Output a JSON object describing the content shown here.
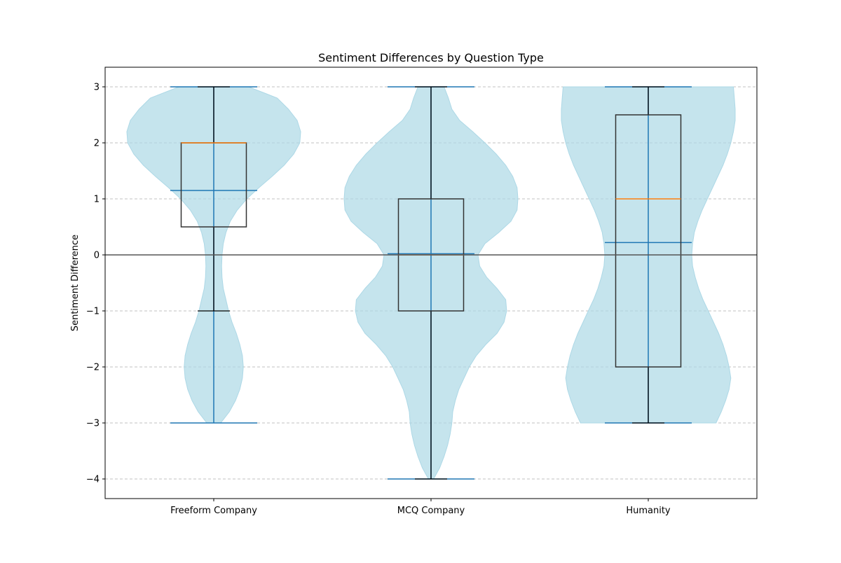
{
  "chart_data": {
    "type": "violin",
    "title": "Sentiment Differences by Question Type",
    "xlabel": "",
    "ylabel": "Sentiment Difference",
    "categories": [
      "Freeform Company",
      "MCQ Company",
      "Humanity"
    ],
    "ylim": [
      -4.35,
      3.35
    ],
    "yticks": [
      -4,
      -3,
      -2,
      -1,
      0,
      1,
      2,
      3
    ],
    "grid": "y-dashed",
    "reference_line": 0,
    "violins": [
      {
        "category": "Freeform Company",
        "min": -3,
        "max": 3,
        "mean": 1.15,
        "box": {
          "q1": 0.5,
          "median": 2,
          "q3": 2,
          "whisker_low": -1,
          "whisker_high": 3
        },
        "density_profile": [
          [
            3.0,
            0.4
          ],
          [
            2.8,
            0.73
          ],
          [
            2.6,
            0.86
          ],
          [
            2.4,
            0.96
          ],
          [
            2.2,
            1.0
          ],
          [
            2.0,
            0.99
          ],
          [
            1.8,
            0.92
          ],
          [
            1.6,
            0.81
          ],
          [
            1.4,
            0.67
          ],
          [
            1.2,
            0.52
          ],
          [
            1.0,
            0.38
          ],
          [
            0.8,
            0.27
          ],
          [
            0.6,
            0.19
          ],
          [
            0.4,
            0.14
          ],
          [
            0.2,
            0.11
          ],
          [
            0.0,
            0.095
          ],
          [
            -0.2,
            0.09
          ],
          [
            -0.4,
            0.095
          ],
          [
            -0.6,
            0.11
          ],
          [
            -0.8,
            0.14
          ],
          [
            -1.0,
            0.17
          ],
          [
            -1.2,
            0.21
          ],
          [
            -1.4,
            0.26
          ],
          [
            -1.6,
            0.3
          ],
          [
            -1.8,
            0.33
          ],
          [
            -2.0,
            0.34
          ],
          [
            -2.2,
            0.33
          ],
          [
            -2.4,
            0.3
          ],
          [
            -2.6,
            0.25
          ],
          [
            -2.8,
            0.18
          ],
          [
            -3.0,
            0.08
          ]
        ]
      },
      {
        "category": "MCQ Company",
        "min": -4,
        "max": 3,
        "mean": 0.02,
        "box": {
          "q1": -1,
          "median": 0,
          "q3": 1,
          "whisker_low": -4,
          "whisker_high": 3
        },
        "density_profile": [
          [
            3.0,
            0.15
          ],
          [
            2.8,
            0.2
          ],
          [
            2.6,
            0.24
          ],
          [
            2.4,
            0.33
          ],
          [
            2.2,
            0.48
          ],
          [
            2.0,
            0.62
          ],
          [
            1.8,
            0.75
          ],
          [
            1.6,
            0.86
          ],
          [
            1.4,
            0.94
          ],
          [
            1.2,
            0.99
          ],
          [
            1.0,
            1.0
          ],
          [
            0.8,
            0.99
          ],
          [
            0.6,
            0.92
          ],
          [
            0.4,
            0.78
          ],
          [
            0.2,
            0.62
          ],
          [
            0.0,
            0.54
          ],
          [
            -0.2,
            0.56
          ],
          [
            -0.4,
            0.64
          ],
          [
            -0.6,
            0.76
          ],
          [
            -0.8,
            0.86
          ],
          [
            -1.0,
            0.87
          ],
          [
            -1.2,
            0.84
          ],
          [
            -1.4,
            0.76
          ],
          [
            -1.6,
            0.63
          ],
          [
            -1.8,
            0.52
          ],
          [
            -2.0,
            0.44
          ],
          [
            -2.2,
            0.38
          ],
          [
            -2.4,
            0.32
          ],
          [
            -2.6,
            0.28
          ],
          [
            -2.8,
            0.25
          ],
          [
            -3.0,
            0.24
          ],
          [
            -3.2,
            0.22
          ],
          [
            -3.4,
            0.19
          ],
          [
            -3.6,
            0.15
          ],
          [
            -3.8,
            0.1
          ],
          [
            -4.0,
            0.03
          ]
        ]
      },
      {
        "category": "Humanity",
        "min": -3,
        "max": 3,
        "mean": 0.22,
        "box": {
          "q1": -2,
          "median": 1,
          "q3": 2.5,
          "whisker_low": -3,
          "whisker_high": 3
        },
        "density_profile": [
          [
            3.0,
            0.98
          ],
          [
            2.8,
            0.99
          ],
          [
            2.6,
            1.0
          ],
          [
            2.4,
            1.0
          ],
          [
            2.2,
            0.98
          ],
          [
            2.0,
            0.95
          ],
          [
            1.8,
            0.91
          ],
          [
            1.6,
            0.86
          ],
          [
            1.4,
            0.8
          ],
          [
            1.2,
            0.74
          ],
          [
            1.0,
            0.68
          ],
          [
            0.8,
            0.62
          ],
          [
            0.6,
            0.57
          ],
          [
            0.4,
            0.53
          ],
          [
            0.2,
            0.51
          ],
          [
            0.0,
            0.5
          ],
          [
            -0.2,
            0.51
          ],
          [
            -0.4,
            0.54
          ],
          [
            -0.6,
            0.58
          ],
          [
            -0.8,
            0.63
          ],
          [
            -1.0,
            0.69
          ],
          [
            -1.2,
            0.75
          ],
          [
            -1.4,
            0.81
          ],
          [
            -1.6,
            0.86
          ],
          [
            -1.8,
            0.9
          ],
          [
            -2.0,
            0.93
          ],
          [
            -2.2,
            0.95
          ],
          [
            -2.4,
            0.93
          ],
          [
            -2.6,
            0.89
          ],
          [
            -2.8,
            0.84
          ],
          [
            -3.0,
            0.78
          ]
        ]
      }
    ],
    "colors": {
      "violin_fill": "#add8e6",
      "violin_lines": "#1f77b4",
      "box_edge": "#333333",
      "median": "#ff7f0e",
      "whisker": "#000000",
      "grid": "#c0c0c0",
      "zero_line": "#555555"
    }
  }
}
